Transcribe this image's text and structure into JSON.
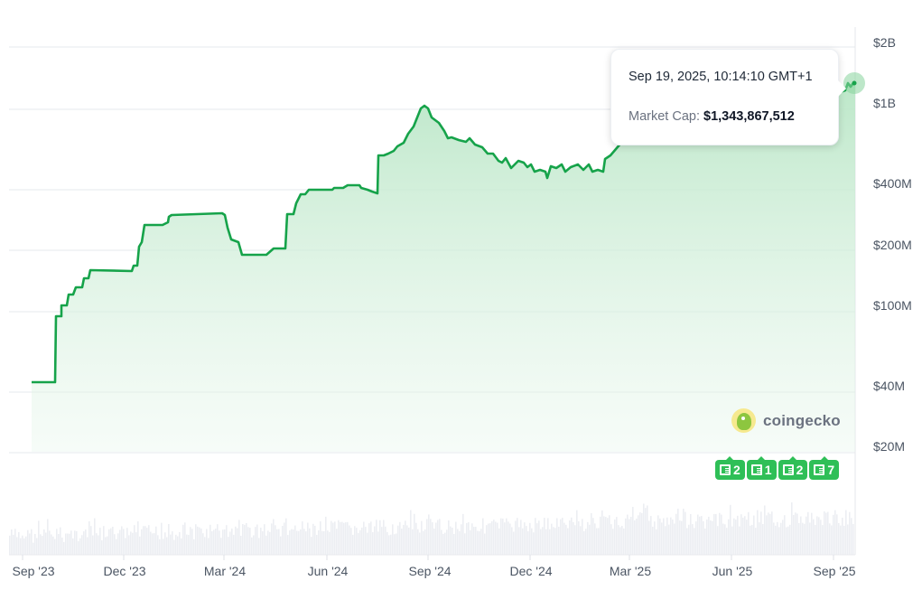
{
  "chart_data": {
    "type": "line",
    "title": "",
    "series_name": "Market Cap",
    "yscale": "log",
    "ylim": [
      15000000,
      2000000000
    ],
    "y_ticks": [
      {
        "label": "$2B",
        "value": 2000000000
      },
      {
        "label": "$1B",
        "value": 1000000000
      },
      {
        "label": "$400M",
        "value": 400000000
      },
      {
        "label": "$200M",
        "value": 200000000
      },
      {
        "label": "$100M",
        "value": 100000000
      },
      {
        "label": "$40M",
        "value": 40000000
      },
      {
        "label": "$20M",
        "value": 20000000
      }
    ],
    "x_ticks": [
      "Sep '23",
      "Dec '23",
      "Mar '24",
      "Jun '24",
      "Sep '24",
      "Dec '24",
      "Mar '25",
      "Jun '25",
      "Sep '25"
    ],
    "x": [
      "2023-09-01",
      "2023-09-15",
      "2023-09-16",
      "2023-10-01",
      "2023-10-15",
      "2023-11-01",
      "2023-11-15",
      "2023-12-01",
      "2023-12-15",
      "2024-01-01",
      "2024-01-15",
      "2024-02-01",
      "2024-02-15",
      "2024-03-01",
      "2024-03-15",
      "2024-04-01",
      "2024-04-15",
      "2024-05-01",
      "2024-05-15",
      "2024-06-01",
      "2024-06-15",
      "2024-07-01",
      "2024-07-15",
      "2024-08-01",
      "2024-08-15",
      "2024-09-01",
      "2024-09-15",
      "2024-10-01",
      "2024-10-15",
      "2024-11-01",
      "2024-11-15",
      "2024-12-01",
      "2024-12-15",
      "2025-01-01",
      "2025-01-15",
      "2025-02-01",
      "2025-02-15",
      "2025-03-01",
      "2025-03-15",
      "2025-04-01",
      "2025-05-01",
      "2025-06-01",
      "2025-07-01",
      "2025-08-01",
      "2025-09-01",
      "2025-09-19"
    ],
    "values": [
      42000000,
      42000000,
      95000000,
      120000000,
      145000000,
      155000000,
      155000000,
      155000000,
      250000000,
      275000000,
      290000000,
      290000000,
      290000000,
      195000000,
      190000000,
      200000000,
      300000000,
      370000000,
      400000000,
      400000000,
      400000000,
      390000000,
      620000000,
      640000000,
      760000000,
      1050000000,
      900000000,
      800000000,
      760000000,
      650000000,
      620000000,
      580000000,
      540000000,
      560000000,
      560000000,
      520000000,
      550000000,
      700000000,
      780000000,
      850000000,
      900000000,
      950000000,
      1050000000,
      1150000000,
      1250000000,
      1343867512
    ],
    "volume_series": "bars along bottom (relative volume, unlabeled)",
    "grid": true,
    "legend": null,
    "tooltip": {
      "date": "Sep 19, 2025, 10:14:10 GMT+1",
      "label": "Market Cap:",
      "value": "$1,343,867,512"
    },
    "line_color": "#16a34a",
    "fill_color": "#bfe8cb"
  },
  "tooltip": {
    "date": "Sep 19, 2025, 10:14:10 GMT+1",
    "label": "Market Cap:",
    "value": "$1,343,867,512"
  },
  "watermark": {
    "text": "coingecko"
  },
  "news_badges": [
    {
      "count": "2"
    },
    {
      "count": "1"
    },
    {
      "count": "2"
    },
    {
      "count": "7"
    }
  ],
  "y_axis": [
    "$2B",
    "$1B",
    "$400M",
    "$200M",
    "$100M",
    "$40M",
    "$20M"
  ],
  "x_axis": [
    "Sep '23",
    "Dec '23",
    "Mar '24",
    "Jun '24",
    "Sep '24",
    "Dec '24",
    "Mar '25",
    "Jun '25",
    "Sep '25"
  ]
}
